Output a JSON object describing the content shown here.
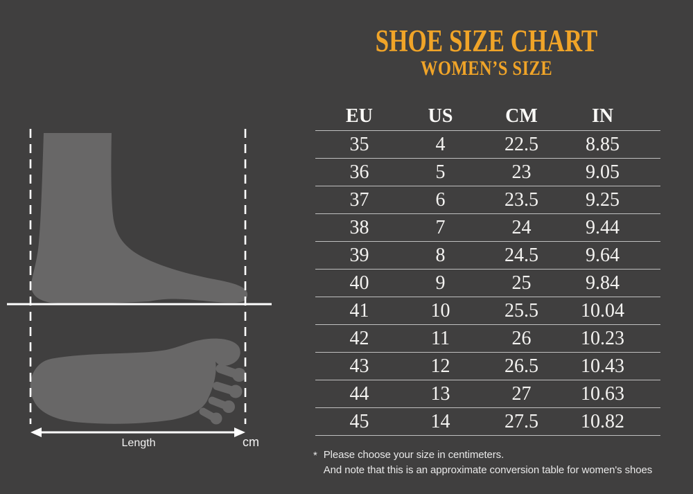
{
  "colors": {
    "background": "#403F3F",
    "accent": "#F0A428",
    "foot_silhouette": "#686767",
    "table_text": "#F4F3F1",
    "separator_line": "#C9C9C9",
    "measure_line": "#FFFFFF"
  },
  "header": {
    "title": "SHOE SIZE CHART",
    "subtitle": "WOMEN’S SIZE"
  },
  "diagram": {
    "length_label": "Length",
    "unit_label": "cm"
  },
  "table": {
    "columns": [
      "EU",
      "US",
      "CM",
      "IN"
    ],
    "rows": [
      [
        "35",
        "4",
        "22.5",
        "8.85"
      ],
      [
        "36",
        "5",
        "23",
        "9.05"
      ],
      [
        "37",
        "6",
        "23.5",
        "9.25"
      ],
      [
        "38",
        "7",
        "24",
        "9.44"
      ],
      [
        "39",
        "8",
        "24.5",
        "9.64"
      ],
      [
        "40",
        "9",
        "25",
        "9.84"
      ],
      [
        "41",
        "10",
        "25.5",
        "10.04"
      ],
      [
        "42",
        "11",
        "26",
        "10.23"
      ],
      [
        "43",
        "12",
        "26.5",
        "10.43"
      ],
      [
        "44",
        "13",
        "27",
        "10.63"
      ],
      [
        "45",
        "14",
        "27.5",
        "10.82"
      ]
    ]
  },
  "footnote": {
    "marker": "*",
    "line1": "Please choose your size in centimeters.",
    "line2": "And note that this is an approximate conversion table for women's shoes"
  },
  "chart_data": {
    "type": "table",
    "title": "SHOE SIZE CHART",
    "subtitle": "WOMEN’S SIZE",
    "columns": [
      "EU",
      "US",
      "CM",
      "IN"
    ],
    "rows": [
      [
        35,
        4,
        22.5,
        8.85
      ],
      [
        36,
        5,
        23,
        9.05
      ],
      [
        37,
        6,
        23.5,
        9.25
      ],
      [
        38,
        7,
        24,
        9.44
      ],
      [
        39,
        8,
        24.5,
        9.64
      ],
      [
        40,
        9,
        25,
        9.84
      ],
      [
        41,
        10,
        25.5,
        10.04
      ],
      [
        42,
        11,
        26,
        10.23
      ],
      [
        43,
        12,
        26.5,
        10.43
      ],
      [
        44,
        13,
        27,
        10.63
      ],
      [
        45,
        14,
        27.5,
        10.82
      ]
    ],
    "notes": [
      "Please choose your size in centimeters.",
      "And note that this is an approximate conversion table for women's shoes"
    ],
    "layout": {
      "legend": "none",
      "grid": "horizontal-separators-only"
    }
  }
}
